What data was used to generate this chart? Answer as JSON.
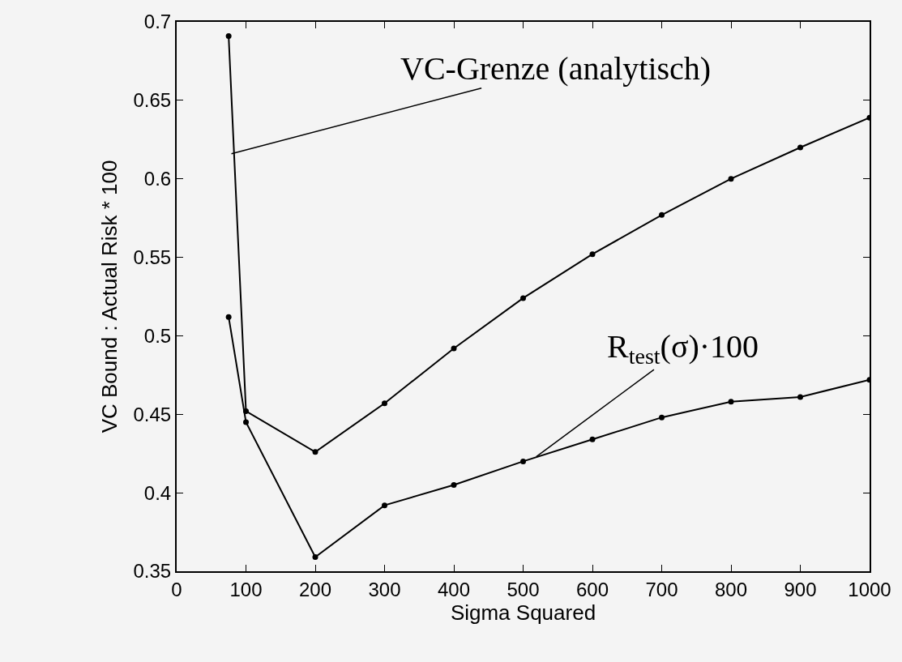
{
  "chart_data": {
    "type": "line",
    "xlabel": "Sigma Squared",
    "ylabel": "VC Bound : Actual Risk * 100",
    "xlim": [
      0,
      1000
    ],
    "xticks": [
      0,
      100,
      200,
      300,
      400,
      500,
      600,
      700,
      800,
      900,
      1000
    ],
    "ylim": [
      0.35,
      0.7
    ],
    "yticks": [
      0.35,
      0.4,
      0.45,
      0.5,
      0.55,
      0.6,
      0.65,
      0.7
    ],
    "x": [
      75,
      100,
      200,
      300,
      400,
      500,
      600,
      700,
      800,
      900,
      1000
    ],
    "series": [
      {
        "color": "#000000",
        "values": [
          0.691,
          0.452,
          0.426,
          0.457,
          0.492,
          0.524,
          0.552,
          0.577,
          0.6,
          0.62,
          0.639
        ]
      },
      {
        "color": "#000000",
        "values": [
          0.512,
          0.445,
          0.359,
          0.392,
          0.405,
          0.42,
          0.434,
          0.448,
          0.458,
          0.461,
          0.472
        ]
      }
    ],
    "annotations": [
      {
        "text": "VC-Grenze (analytisch)",
        "x": 79,
        "y": 0.616
      },
      {
        "text": "R$_{test}$(σ)·100",
        "x": 519,
        "y": 0.423
      }
    ],
    "marker": "circle",
    "line_style": "solid"
  }
}
